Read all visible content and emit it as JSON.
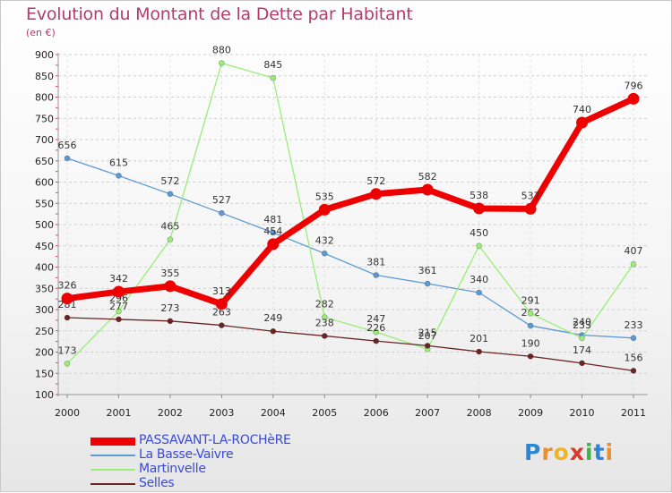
{
  "header": {
    "title": "Evolution du Montant de la Dette par Habitant",
    "unit": "(en €)"
  },
  "brand": {
    "letters": [
      "P",
      "r",
      "o",
      "x",
      "i",
      "t",
      "i"
    ],
    "colors": [
      "#2b86d6",
      "#e8912e",
      "#f0b323",
      "#d83a2a",
      "#3fb34a",
      "#2b86d6",
      "#e8912e"
    ]
  },
  "chart_data": {
    "type": "line",
    "title": "Evolution du Montant de la Dette par Habitant",
    "ylabel": "(en €)",
    "xlabel": "",
    "ylim": [
      100,
      900
    ],
    "yticks": [
      100,
      150,
      200,
      250,
      300,
      350,
      400,
      450,
      500,
      550,
      600,
      650,
      700,
      750,
      800,
      850,
      900
    ],
    "x": [
      "2000",
      "2001",
      "2002",
      "2003",
      "2004",
      "2005",
      "2006",
      "2007",
      "2008",
      "2009",
      "2010",
      "2011"
    ],
    "grid": "horizontal dashed",
    "legend": "bottom-left",
    "series": [
      {
        "name": "PASSAVANT-LA-ROCHèRE",
        "color": "#ee0000",
        "emphasis": true,
        "values": [
          326,
          342,
          355,
          313,
          454,
          535,
          572,
          582,
          538,
          537,
          740,
          796
        ],
        "labels": [
          "326",
          "342",
          "355",
          "313",
          "454",
          "535",
          "572",
          "582",
          "538",
          "537",
          "740",
          "796"
        ]
      },
      {
        "name": "La Basse-Vaivre",
        "color": "#5b9bd5",
        "values": [
          656,
          615,
          572,
          527,
          481,
          432,
          381,
          361,
          340,
          262,
          240,
          233
        ],
        "labels": [
          "656",
          "615",
          "572",
          "527",
          "481",
          "432",
          "381",
          "361",
          "340",
          "262",
          "240",
          "233"
        ]
      },
      {
        "name": "Martinvelle",
        "color": "#99ee77",
        "values": [
          173,
          296,
          465,
          880,
          845,
          282,
          247,
          207,
          450,
          291,
          233,
          407
        ],
        "labels": [
          "173",
          "296",
          "465",
          "880",
          "845",
          "282",
          "247",
          "207",
          "450",
          "291",
          "233",
          "407"
        ]
      },
      {
        "name": "Selles",
        "color": "#6b2424",
        "values": [
          281,
          277,
          273,
          263,
          249,
          238,
          226,
          215,
          201,
          190,
          174,
          156
        ],
        "labels": [
          "281",
          "277",
          "273",
          "263",
          "249",
          "238",
          "226",
          "215",
          "201",
          "190",
          "174",
          "156"
        ]
      }
    ]
  }
}
